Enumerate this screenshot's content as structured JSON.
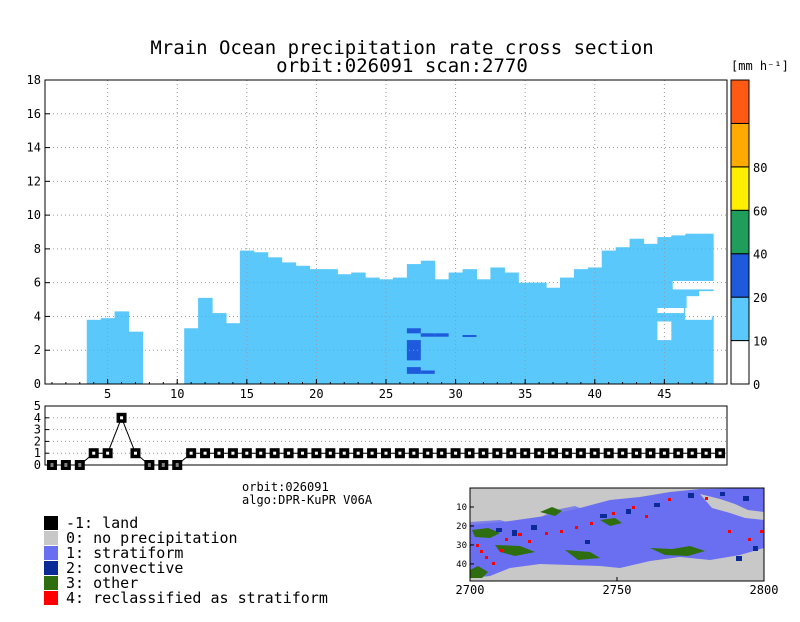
{
  "title_line1": "Mrain Ocean precipitation rate cross section",
  "title_line2": "orbit:026091    scan:2770",
  "colorbar": {
    "unit_label": "[mm h⁻¹]",
    "levels": [
      {
        "value": "0",
        "color": "#ffffff"
      },
      {
        "value": "10",
        "color": "#5ac8fa"
      },
      {
        "value": "20",
        "color": "#1e5adc"
      },
      {
        "value": "40",
        "color": "#1e9e5a"
      },
      {
        "value": "60",
        "color": "#ffee00"
      },
      {
        "value": "80",
        "color": "#ffaa00"
      },
      {
        "value": "",
        "color": "#ff5a14"
      }
    ],
    "colors": [
      "#ffffff",
      "#5ac8fa",
      "#1e5adc",
      "#1e9e5a",
      "#ffee00",
      "#ffaa00",
      "#ff5a14"
    ]
  },
  "chart_data": [
    {
      "type": "heatmap",
      "title": "Mrain Ocean precipitation rate cross section",
      "xlim": [
        1,
        49
      ],
      "ylim": [
        0,
        18
      ],
      "x_ticks": [
        5,
        10,
        15,
        20,
        25,
        30,
        35,
        40,
        45
      ],
      "y_ticks": [
        0,
        2,
        4,
        6,
        8,
        10,
        12,
        14,
        16,
        18
      ],
      "columns": [
        {
          "x": 4,
          "bottom": 0,
          "top": 3.8
        },
        {
          "x": 5,
          "bottom": 0,
          "top": 3.9
        },
        {
          "x": 6,
          "bottom": 0,
          "top": 4.3
        },
        {
          "x": 7,
          "bottom": 0,
          "top": 3.1
        },
        {
          "x": 11,
          "bottom": 0,
          "top": 3.3
        },
        {
          "x": 12,
          "bottom": 0,
          "top": 5.1
        },
        {
          "x": 13,
          "bottom": 0,
          "top": 4.2
        },
        {
          "x": 14,
          "bottom": 0,
          "top": 3.6
        },
        {
          "x": 15,
          "bottom": 0,
          "top": 3.0
        },
        {
          "x": 15,
          "bottom": 0,
          "top": 2.2
        },
        {
          "x": 15,
          "bottom": 0,
          "top": 7.9
        },
        {
          "x": 16,
          "bottom": 0,
          "top": 7.8
        },
        {
          "x": 17,
          "bottom": 0,
          "top": 7.5
        },
        {
          "x": 18,
          "bottom": 0,
          "top": 7.2
        },
        {
          "x": 19,
          "bottom": 0,
          "top": 7.0
        },
        {
          "x": 20,
          "bottom": 0,
          "top": 6.8
        },
        {
          "x": 21,
          "bottom": 0,
          "top": 6.8
        },
        {
          "x": 22,
          "bottom": 0,
          "top": 6.5
        },
        {
          "x": 23,
          "bottom": 0,
          "top": 6.6
        },
        {
          "x": 24,
          "bottom": 0,
          "top": 6.3
        },
        {
          "x": 25,
          "bottom": 0,
          "top": 6.2
        },
        {
          "x": 26,
          "bottom": 0,
          "top": 6.3
        },
        {
          "x": 27,
          "bottom": 0,
          "top": 7.1
        },
        {
          "x": 28,
          "bottom": 0,
          "top": 7.3
        },
        {
          "x": 29,
          "bottom": 0,
          "top": 6.2
        },
        {
          "x": 30,
          "bottom": 0,
          "top": 6.6
        },
        {
          "x": 31,
          "bottom": 0,
          "top": 6.8
        },
        {
          "x": 32,
          "bottom": 0,
          "top": 6.2
        },
        {
          "x": 33,
          "bottom": 0,
          "top": 6.9
        },
        {
          "x": 34,
          "bottom": 0,
          "top": 6.6
        },
        {
          "x": 35,
          "bottom": 0,
          "top": 6.0
        },
        {
          "x": 36,
          "bottom": 0,
          "top": 6.0
        },
        {
          "x": 37,
          "bottom": 0,
          "top": 5.7
        },
        {
          "x": 38,
          "bottom": 0,
          "top": 6.3
        },
        {
          "x": 39,
          "bottom": 0,
          "top": 6.8
        },
        {
          "x": 40,
          "bottom": 0,
          "top": 6.9
        },
        {
          "x": 41,
          "bottom": 0,
          "top": 7.9
        },
        {
          "x": 42,
          "bottom": 0,
          "top": 8.1
        },
        {
          "x": 43,
          "bottom": 0,
          "top": 8.6
        },
        {
          "x": 44,
          "bottom": 0,
          "top": 8.3
        },
        {
          "x": 45,
          "bottom": 0,
          "top": 8.7
        },
        {
          "x": 46,
          "bottom": 0,
          "top": 8.8
        },
        {
          "x": 47,
          "bottom": 0,
          "top": 8.9
        },
        {
          "x": 48,
          "bottom": 0,
          "top": 8.9
        }
      ],
      "convective_cells": [
        {
          "x": 27,
          "bottom": 3.0,
          "top": 3.3
        },
        {
          "x": 28,
          "bottom": 2.8,
          "top": 3.0
        },
        {
          "x": 29,
          "bottom": 2.8,
          "top": 3.0
        },
        {
          "x": 31,
          "bottom": 2.8,
          "top": 2.9
        },
        {
          "x": 27,
          "bottom": 1.4,
          "top": 2.6
        },
        {
          "x": 27,
          "bottom": 0.6,
          "top": 1.0
        },
        {
          "x": 28,
          "bottom": 0.6,
          "top": 0.8
        }
      ]
    },
    {
      "type": "line",
      "title": "",
      "xlim": [
        1,
        49
      ],
      "ylim": [
        0,
        5
      ],
      "y_ticks": [
        0,
        1,
        2,
        3,
        4,
        5
      ],
      "x": [
        1,
        2,
        3,
        4,
        5,
        6,
        7,
        8,
        9,
        10,
        11,
        12,
        13,
        14,
        15,
        16,
        17,
        18,
        19,
        20,
        21,
        22,
        23,
        24,
        25,
        26,
        27,
        28,
        29,
        30,
        31,
        32,
        33,
        34,
        35,
        36,
        37,
        38,
        39,
        40,
        41,
        42,
        43,
        44,
        45,
        46,
        47,
        48,
        49
      ],
      "values": [
        0,
        0,
        0,
        1,
        1,
        4,
        1,
        0,
        0,
        0,
        1,
        1,
        1,
        1,
        1,
        1,
        1,
        1,
        1,
        1,
        1,
        1,
        1,
        1,
        1,
        1,
        1,
        1,
        1,
        1,
        1,
        1,
        1,
        1,
        1,
        1,
        1,
        1,
        1,
        1,
        1,
        1,
        1,
        1,
        1,
        1,
        1,
        1,
        1
      ]
    },
    {
      "type": "heatmap",
      "title": "",
      "x_ticks": [
        2700,
        2750,
        2800
      ],
      "y_ticks": [
        10,
        20,
        30,
        40
      ],
      "xlim": [
        2700,
        2800
      ],
      "ylim": [
        0,
        49
      ]
    }
  ],
  "info": {
    "orbit": "orbit:026091",
    "algo": "algo:DPR-KuPR V06A"
  },
  "legend": [
    {
      "label": "-1: land",
      "color": "#000000"
    },
    {
      "label": "0: no precipitation",
      "color": "#c8c8c8"
    },
    {
      "label": "1: stratiform",
      "color": "#6a6ef0"
    },
    {
      "label": "2: convective",
      "color": "#0a2a96"
    },
    {
      "label": "3: other",
      "color": "#2e6e0e"
    },
    {
      "label": "4: reclassified as stratiform",
      "color": "#ff0000"
    }
  ]
}
